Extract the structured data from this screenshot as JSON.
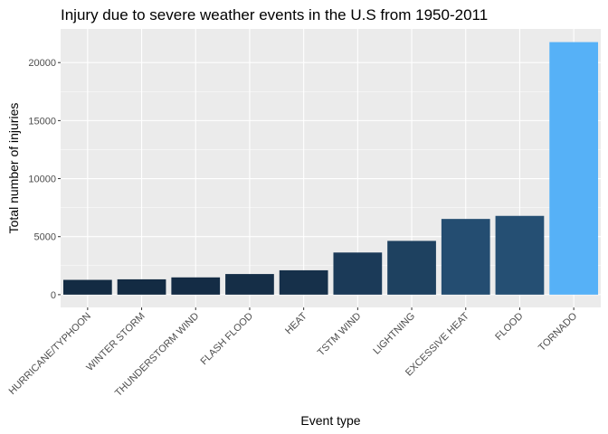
{
  "chart_data": {
    "type": "bar",
    "title": "Injury due to severe weather events in the U.S from 1950-2011",
    "xlabel": "Event type",
    "ylabel": "Total number of injuries",
    "categories": [
      "HURRICANE/TYPHOON",
      "WINTER STORM",
      "THUNDERSTORM WIND",
      "FLASH FLOOD",
      "HEAT",
      "TSTM WIND",
      "LIGHTNING",
      "EXCESSIVE HEAT",
      "FLOOD",
      "TORNADO"
    ],
    "values": [
      1275,
      1321,
      1488,
      1777,
      2100,
      3631,
      4633,
      6525,
      6789,
      21765
    ],
    "yticks": [
      0,
      5000,
      10000,
      15000,
      20000
    ],
    "ytick_labels": [
      "0",
      "5000",
      "10000",
      "15000",
      "20000"
    ],
    "ylim": [
      -1100,
      22900
    ],
    "grid": true,
    "legend": "none",
    "colors": {
      "panel_bg": "#ebebeb",
      "grid_major": "#ffffff",
      "bar_low": "#132b43",
      "bar_high": "#56b1f7"
    }
  }
}
